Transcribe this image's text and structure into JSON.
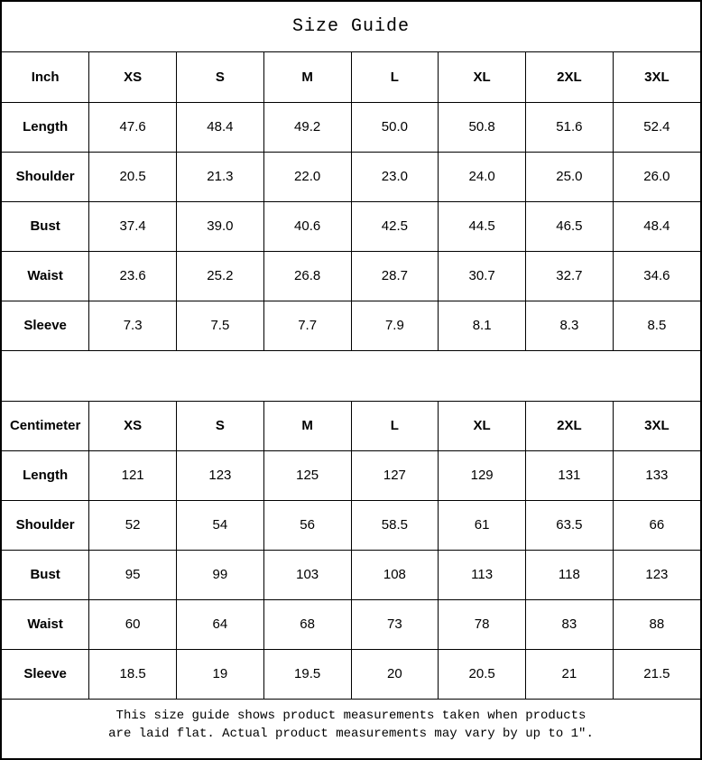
{
  "title": "Size Guide",
  "colors": {
    "border": "#000000",
    "background": "#ffffff",
    "text": "#000000"
  },
  "inch_table": {
    "unit_label": "Inch",
    "sizes": [
      "XS",
      "S",
      "M",
      "L",
      "XL",
      "2XL",
      "3XL"
    ],
    "rows": [
      {
        "label": "Length",
        "values": [
          "47.6",
          "48.4",
          "49.2",
          "50.0",
          "50.8",
          "51.6",
          "52.4"
        ]
      },
      {
        "label": "Shoulder",
        "values": [
          "20.5",
          "21.3",
          "22.0",
          "23.0",
          "24.0",
          "25.0",
          "26.0"
        ]
      },
      {
        "label": "Bust",
        "values": [
          "37.4",
          "39.0",
          "40.6",
          "42.5",
          "44.5",
          "46.5",
          "48.4"
        ]
      },
      {
        "label": "Waist",
        "values": [
          "23.6",
          "25.2",
          "26.8",
          "28.7",
          "30.7",
          "32.7",
          "34.6"
        ]
      },
      {
        "label": "Sleeve",
        "values": [
          "7.3",
          "7.5",
          "7.7",
          "7.9",
          "8.1",
          "8.3",
          "8.5"
        ]
      }
    ]
  },
  "cm_table": {
    "unit_label": "Centimeter",
    "sizes": [
      "XS",
      "S",
      "M",
      "L",
      "XL",
      "2XL",
      "3XL"
    ],
    "rows": [
      {
        "label": "Length",
        "values": [
          "121",
          "123",
          "125",
          "127",
          "129",
          "131",
          "133"
        ]
      },
      {
        "label": "Shoulder",
        "values": [
          "52",
          "54",
          "56",
          "58.5",
          "61",
          "63.5",
          "66"
        ]
      },
      {
        "label": "Bust",
        "values": [
          "95",
          "99",
          "103",
          "108",
          "113",
          "118",
          "123"
        ]
      },
      {
        "label": "Waist",
        "values": [
          "60",
          "64",
          "68",
          "73",
          "78",
          "83",
          "88"
        ]
      },
      {
        "label": "Sleeve",
        "values": [
          "18.5",
          "19",
          "19.5",
          "20",
          "20.5",
          "21",
          "21.5"
        ]
      }
    ]
  },
  "footer": {
    "line1": "This size guide shows product measurements taken when products",
    "line2": "are laid flat. Actual product measurements may vary by up to 1″."
  }
}
